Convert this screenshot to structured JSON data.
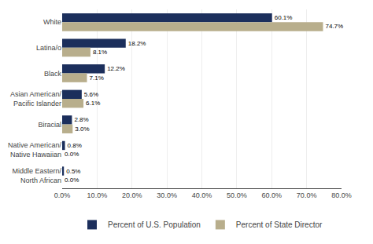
{
  "chart_data": {
    "type": "bar",
    "orientation": "horizontal",
    "categories": [
      "White",
      "Latina/o",
      "Black",
      "Asian American/\nPacific Islander",
      "Biracial",
      "Native American/\nNative Hawaiian",
      "Middle Eastern/\nNorth African"
    ],
    "series": [
      {
        "name": "Percent of U.S. Population",
        "color": "#1c2f5c",
        "values": [
          60.1,
          18.2,
          12.2,
          5.6,
          2.8,
          0.8,
          0.5
        ],
        "value_labels": [
          "60.1%",
          "18.2%",
          "12.2%",
          "5.6%",
          "2.8%",
          "0.8%",
          "0.5%"
        ]
      },
      {
        "name": "Percent of State Director",
        "color": "#b8ae8c",
        "values": [
          74.7,
          8.1,
          7.1,
          6.1,
          3.0,
          0.0,
          0.0
        ],
        "value_labels": [
          "74.7%",
          "8.1%",
          "7.1%",
          "6.1%",
          "3.0%",
          "0.0%",
          "0.0%"
        ]
      }
    ],
    "data_labels": true,
    "xlim": [
      0,
      80
    ],
    "xticks": [
      {
        "value": 0,
        "label": "0.0%"
      },
      {
        "value": 10,
        "label": "10.0%"
      },
      {
        "value": 20,
        "label": "20.0%"
      },
      {
        "value": 30,
        "label": "30.0%"
      },
      {
        "value": 40,
        "label": "40.0%"
      },
      {
        "value": 50,
        "label": "50.0%"
      },
      {
        "value": 60,
        "label": "60.0%"
      },
      {
        "value": 70,
        "label": "70.0%"
      },
      {
        "value": 80,
        "label": "80.0%"
      }
    ],
    "grid": true,
    "legend": "bottom"
  }
}
